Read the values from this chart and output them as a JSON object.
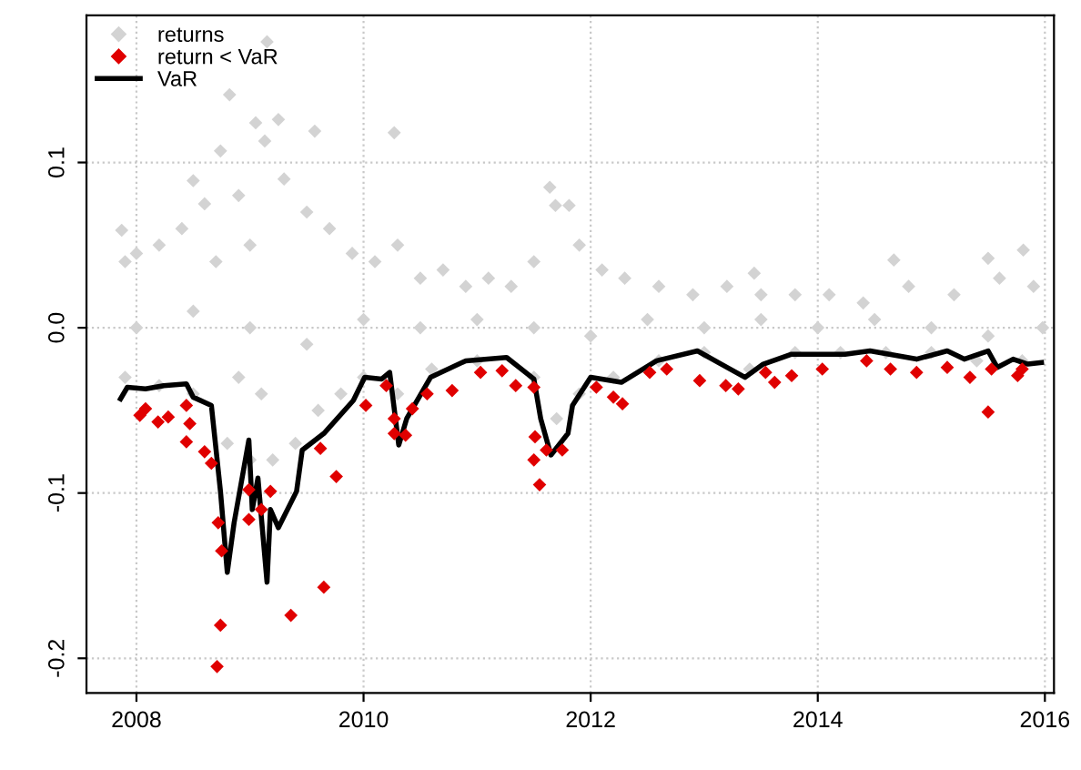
{
  "chart_data": {
    "type": "scatter",
    "xlim": [
      2007.56,
      2016.08
    ],
    "ylim": [
      -0.221,
      0.189
    ],
    "xticks": [
      2008,
      2010,
      2012,
      2014,
      2016
    ],
    "yticks": [
      {
        "value": -0.2,
        "label": "-0.2"
      },
      {
        "value": -0.1,
        "label": "-0.1"
      },
      {
        "value": 0.0,
        "label": "0.0"
      },
      {
        "value": 0.1,
        "label": "0.1"
      }
    ],
    "grid": true,
    "legend": "top left",
    "series": [
      {
        "name": "returns",
        "marker": "diamond",
        "color": "#d3d3d3",
        "x": [
          2007.87,
          2007.9,
          2007.9,
          2008.0,
          2008.0,
          2008.2,
          2008.2,
          2008.4,
          2008.5,
          2008.5,
          2008.5,
          2008.6,
          2008.7,
          2008.74,
          2008.8,
          2008.82,
          2008.9,
          2008.9,
          2009.0,
          2009.0,
          2009.0,
          2009.05,
          2009.1,
          2009.13,
          2009.15,
          2009.2,
          2009.25,
          2009.3,
          2009.4,
          2009.5,
          2009.5,
          2009.57,
          2009.6,
          2009.7,
          2009.8,
          2009.9,
          2010.0,
          2010.0,
          2010.1,
          2010.27,
          2010.3,
          2010.3,
          2010.5,
          2010.5,
          2010.6,
          2010.7,
          2010.9,
          2011.0,
          2011.0,
          2011.1,
          2011.3,
          2011.5,
          2011.5,
          2011.5,
          2011.64,
          2011.69,
          2011.7,
          2011.81,
          2011.9,
          2011.9,
          2012.0,
          2012.1,
          2012.2,
          2012.3,
          2012.5,
          2012.6,
          2012.6,
          2012.9,
          2013.0,
          2013.0,
          2013.2,
          2013.4,
          2013.44,
          2013.5,
          2013.5,
          2013.8,
          2013.8,
          2014.0,
          2014.1,
          2014.2,
          2014.4,
          2014.5,
          2014.6,
          2014.67,
          2014.8,
          2015.0,
          2015.0,
          2015.2,
          2015.4,
          2015.5,
          2015.5,
          2015.6,
          2015.8,
          2015.81,
          2015.9,
          2015.98
        ],
        "values": [
          0.059,
          0.04,
          -0.03,
          0.045,
          0.0,
          0.05,
          -0.035,
          0.06,
          0.089,
          0.01,
          -0.04,
          0.075,
          0.04,
          0.107,
          -0.07,
          0.141,
          0.08,
          -0.03,
          -0.08,
          0.0,
          0.05,
          0.124,
          -0.04,
          0.113,
          0.173,
          -0.08,
          0.126,
          0.09,
          -0.07,
          0.07,
          -0.01,
          0.119,
          -0.05,
          0.06,
          -0.04,
          0.045,
          -0.03,
          0.005,
          0.04,
          0.118,
          0.05,
          -0.04,
          0.03,
          0.0,
          -0.025,
          0.035,
          0.025,
          -0.02,
          0.005,
          0.03,
          0.025,
          0.04,
          0.0,
          -0.03,
          0.085,
          0.074,
          -0.055,
          0.074,
          0.05,
          -0.04,
          -0.005,
          0.035,
          -0.03,
          0.03,
          0.005,
          0.025,
          -0.02,
          0.02,
          -0.015,
          0.0,
          0.025,
          -0.025,
          0.033,
          0.02,
          0.005,
          0.02,
          -0.015,
          0.0,
          0.02,
          -0.015,
          0.015,
          0.005,
          -0.015,
          0.041,
          0.025,
          -0.015,
          0.0,
          0.02,
          -0.02,
          0.042,
          -0.005,
          0.03,
          -0.02,
          0.047,
          0.025,
          0.0
        ]
      },
      {
        "name": "return < VaR",
        "marker": "diamond",
        "color": "#e00000",
        "x": [
          2008.03,
          2008.08,
          2008.19,
          2008.28,
          2008.44,
          2008.47,
          2008.44,
          2008.6,
          2008.66,
          2008.72,
          2008.75,
          2008.74,
          2008.71,
          2008.99,
          2008.99,
          2009.1,
          2009.18,
          2009.36,
          2009.65,
          2009.76,
          2009.62,
          2010.02,
          2010.2,
          2010.27,
          2010.27,
          2010.37,
          2010.43,
          2010.56,
          2010.78,
          2011.03,
          2011.22,
          2011.34,
          2011.5,
          2011.51,
          2011.5,
          2011.55,
          2011.61,
          2011.75,
          2012.05,
          2012.2,
          2012.28,
          2012.52,
          2012.67,
          2012.96,
          2013.19,
          2013.3,
          2013.54,
          2013.62,
          2013.77,
          2014.04,
          2014.43,
          2014.64,
          2014.87,
          2015.14,
          2015.34,
          2015.5,
          2015.53,
          2015.76,
          2015.8
        ],
        "values": [
          -0.053,
          -0.049,
          -0.057,
          -0.054,
          -0.047,
          -0.058,
          -0.069,
          -0.075,
          -0.082,
          -0.118,
          -0.135,
          -0.18,
          -0.205,
          -0.116,
          -0.098,
          -0.11,
          -0.099,
          -0.174,
          -0.157,
          -0.09,
          -0.073,
          -0.047,
          -0.035,
          -0.055,
          -0.064,
          -0.065,
          -0.049,
          -0.04,
          -0.038,
          -0.027,
          -0.026,
          -0.035,
          -0.036,
          -0.066,
          -0.08,
          -0.095,
          -0.074,
          -0.074,
          -0.036,
          -0.042,
          -0.046,
          -0.027,
          -0.025,
          -0.032,
          -0.035,
          -0.037,
          -0.027,
          -0.033,
          -0.029,
          -0.025,
          -0.02,
          -0.025,
          -0.027,
          -0.024,
          -0.03,
          -0.051,
          -0.025,
          -0.029,
          -0.025
        ]
      },
      {
        "name": "VaR",
        "type": "line",
        "marker": "none",
        "line_style": "solid",
        "color": "#000000",
        "x": [
          2007.86,
          2007.92,
          2008.08,
          2008.24,
          2008.44,
          2008.5,
          2008.66,
          2008.74,
          2008.8,
          2008.86,
          2008.99,
          2009.02,
          2009.07,
          2009.15,
          2009.18,
          2009.25,
          2009.41,
          2009.46,
          2009.65,
          2009.91,
          2010.01,
          2010.16,
          2010.23,
          2010.31,
          2010.38,
          2010.59,
          2010.9,
          2011.26,
          2011.5,
          2011.56,
          2011.65,
          2011.8,
          2011.84,
          2012.0,
          2012.27,
          2012.58,
          2012.94,
          2013.15,
          2013.36,
          2013.52,
          2013.77,
          2014.24,
          2014.46,
          2014.87,
          2015.14,
          2015.29,
          2015.5,
          2015.58,
          2015.72,
          2015.85,
          2015.97
        ],
        "values": [
          -0.043,
          -0.036,
          -0.037,
          -0.035,
          -0.034,
          -0.042,
          -0.047,
          -0.099,
          -0.148,
          -0.118,
          -0.068,
          -0.11,
          -0.091,
          -0.154,
          -0.11,
          -0.121,
          -0.099,
          -0.074,
          -0.064,
          -0.044,
          -0.03,
          -0.031,
          -0.027,
          -0.071,
          -0.055,
          -0.03,
          -0.02,
          -0.018,
          -0.031,
          -0.055,
          -0.077,
          -0.064,
          -0.047,
          -0.03,
          -0.033,
          -0.02,
          -0.014,
          -0.022,
          -0.03,
          -0.022,
          -0.016,
          -0.016,
          -0.014,
          -0.019,
          -0.014,
          -0.019,
          -0.014,
          -0.024,
          -0.019,
          -0.022,
          -0.021
        ]
      }
    ]
  }
}
